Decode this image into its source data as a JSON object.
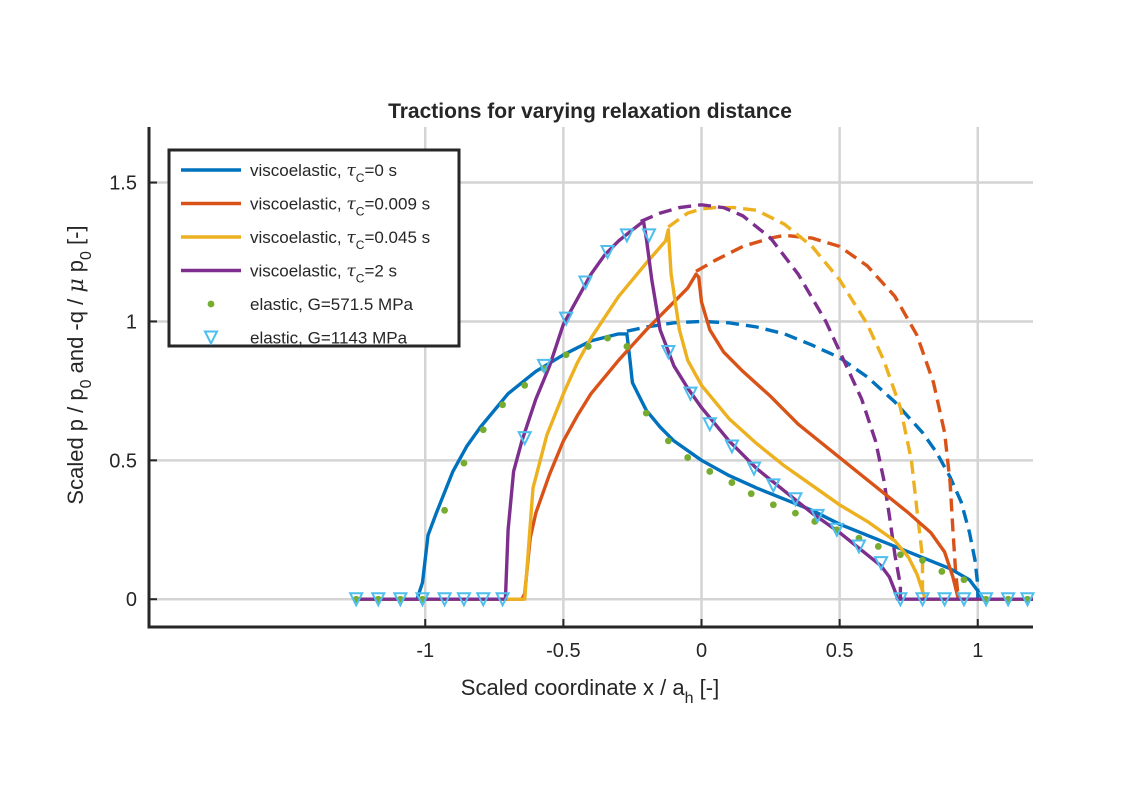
{
  "chart_data": {
    "type": "line",
    "title": "Tractions for varying relaxation distance",
    "xlabel": {
      "main": "Scaled coordinate x / a",
      "sub": "h",
      "tail": " [-]"
    },
    "ylabel": {
      "p1": "Scaled p / p",
      "s1": "0",
      "p2": " and -q / ",
      "mu": "μ",
      "p3": " p",
      "s2": "0",
      "p4": " [-]"
    },
    "xlim": [
      -2.0,
      1.2
    ],
    "ylim": [
      -0.1,
      1.7
    ],
    "xticks": [
      -1,
      -0.5,
      0,
      0.5,
      1
    ],
    "xtick_labels": [
      "-1",
      "-0.5",
      "0",
      "0.5",
      "1"
    ],
    "yticks": [
      0,
      0.5,
      1,
      1.5
    ],
    "ytick_labels": [
      "0",
      "0.5",
      "1",
      "1.5"
    ],
    "grid": true,
    "legend_placement": "top-left",
    "legend": [
      {
        "pre": "viscoelastic, ",
        "tau": "τ",
        "sub": "C",
        "post": "=0 s",
        "color": "#0072BD",
        "marker": "line"
      },
      {
        "pre": "viscoelastic, ",
        "tau": "τ",
        "sub": "C",
        "post": "=0.009 s",
        "color": "#D95319",
        "marker": "line"
      },
      {
        "pre": "viscoelastic, ",
        "tau": "τ",
        "sub": "C",
        "post": "=0.045 s",
        "color": "#EDB120",
        "marker": "line"
      },
      {
        "pre": "viscoelastic, ",
        "tau": "τ",
        "sub": "C",
        "post": "=2 s",
        "color": "#7E2F8E",
        "marker": "line"
      },
      {
        "pre": "elastic, G=571.5 MPa",
        "tau": "",
        "sub": "",
        "post": "",
        "color": "#77AC30",
        "marker": "dot"
      },
      {
        "pre": "elastic, G=1143 MPa",
        "tau": "",
        "sub": "",
        "post": "",
        "color": "#4DBEEE",
        "marker": "triangle"
      }
    ],
    "series": [
      {
        "name": "viscoelastic, τC=0 s",
        "color": "#0072BD",
        "solid": [
          [
            -1.25,
            0
          ],
          [
            -1.1,
            0
          ],
          [
            -1.03,
            0.0
          ],
          [
            -1.01,
            0.06
          ],
          [
            -0.99,
            0.23
          ],
          [
            -0.96,
            0.31
          ],
          [
            -0.9,
            0.46
          ],
          [
            -0.85,
            0.55
          ],
          [
            -0.8,
            0.62
          ],
          [
            -0.7,
            0.74
          ],
          [
            -0.6,
            0.82
          ],
          [
            -0.5,
            0.88
          ],
          [
            -0.4,
            0.93
          ],
          [
            -0.3,
            0.955
          ],
          [
            -0.27,
            0.955
          ],
          [
            -0.26,
            0.87
          ],
          [
            -0.25,
            0.78
          ],
          [
            -0.22,
            0.72
          ],
          [
            -0.2,
            0.68
          ],
          [
            -0.15,
            0.62
          ],
          [
            -0.1,
            0.57
          ],
          [
            0,
            0.5
          ],
          [
            0.1,
            0.445
          ],
          [
            0.2,
            0.4
          ],
          [
            0.3,
            0.36
          ],
          [
            0.4,
            0.32
          ],
          [
            0.5,
            0.27
          ],
          [
            0.6,
            0.23
          ],
          [
            0.7,
            0.19
          ],
          [
            0.8,
            0.15
          ],
          [
            0.9,
            0.11
          ],
          [
            0.97,
            0.07
          ],
          [
            1.0,
            0.03
          ],
          [
            1.02,
            0
          ],
          [
            1.2,
            0
          ]
        ],
        "dashed": [
          [
            -0.27,
            0.965
          ],
          [
            -0.2,
            0.98
          ],
          [
            -0.1,
            0.995
          ],
          [
            0,
            1.0
          ],
          [
            0.1,
            0.995
          ],
          [
            0.2,
            0.98
          ],
          [
            0.3,
            0.955
          ],
          [
            0.4,
            0.915
          ],
          [
            0.5,
            0.87
          ],
          [
            0.6,
            0.8
          ],
          [
            0.7,
            0.71
          ],
          [
            0.8,
            0.6
          ],
          [
            0.85,
            0.53
          ],
          [
            0.9,
            0.44
          ],
          [
            0.94,
            0.35
          ],
          [
            0.97,
            0.24
          ],
          [
            0.99,
            0.14
          ],
          [
            1.0,
            0.05
          ],
          [
            1.0,
            0
          ]
        ]
      },
      {
        "name": "viscoelastic, τC=0.009 s",
        "color": "#D95319",
        "solid": [
          [
            -1.25,
            0
          ],
          [
            -0.65,
            0
          ],
          [
            -0.64,
            0.02
          ],
          [
            -0.62,
            0.22
          ],
          [
            -0.6,
            0.31
          ],
          [
            -0.55,
            0.45
          ],
          [
            -0.5,
            0.57
          ],
          [
            -0.45,
            0.66
          ],
          [
            -0.4,
            0.74
          ],
          [
            -0.3,
            0.86
          ],
          [
            -0.2,
            0.97
          ],
          [
            -0.1,
            1.07
          ],
          [
            -0.05,
            1.12
          ],
          [
            -0.02,
            1.17
          ],
          [
            -0.01,
            1.16
          ],
          [
            0.0,
            1.07
          ],
          [
            0.03,
            0.97
          ],
          [
            0.08,
            0.89
          ],
          [
            0.15,
            0.82
          ],
          [
            0.25,
            0.73
          ],
          [
            0.35,
            0.63
          ],
          [
            0.45,
            0.55
          ],
          [
            0.55,
            0.47
          ],
          [
            0.65,
            0.39
          ],
          [
            0.75,
            0.31
          ],
          [
            0.83,
            0.24
          ],
          [
            0.88,
            0.17
          ],
          [
            0.91,
            0.08
          ],
          [
            0.93,
            0
          ],
          [
            1.2,
            0
          ]
        ],
        "dashed": [
          [
            -0.02,
            1.18
          ],
          [
            0.05,
            1.22
          ],
          [
            0.15,
            1.27
          ],
          [
            0.25,
            1.3
          ],
          [
            0.3,
            1.31
          ],
          [
            0.4,
            1.3
          ],
          [
            0.5,
            1.27
          ],
          [
            0.6,
            1.2
          ],
          [
            0.7,
            1.09
          ],
          [
            0.78,
            0.95
          ],
          [
            0.84,
            0.78
          ],
          [
            0.88,
            0.6
          ],
          [
            0.9,
            0.42
          ],
          [
            0.91,
            0.25
          ],
          [
            0.92,
            0.1
          ],
          [
            0.93,
            0
          ]
        ]
      },
      {
        "name": "viscoelastic, τC=0.045 s",
        "color": "#EDB120",
        "solid": [
          [
            -1.25,
            0
          ],
          [
            -0.64,
            0
          ],
          [
            -0.61,
            0.4
          ],
          [
            -0.56,
            0.59
          ],
          [
            -0.5,
            0.74
          ],
          [
            -0.45,
            0.85
          ],
          [
            -0.4,
            0.94
          ],
          [
            -0.3,
            1.09
          ],
          [
            -0.2,
            1.21
          ],
          [
            -0.13,
            1.29
          ],
          [
            -0.12,
            1.33
          ],
          [
            -0.11,
            1.17
          ],
          [
            -0.08,
            0.97
          ],
          [
            -0.05,
            0.86
          ],
          [
            0,
            0.77
          ],
          [
            0.1,
            0.65
          ],
          [
            0.2,
            0.56
          ],
          [
            0.3,
            0.48
          ],
          [
            0.4,
            0.41
          ],
          [
            0.5,
            0.34
          ],
          [
            0.6,
            0.28
          ],
          [
            0.7,
            0.21
          ],
          [
            0.75,
            0.15
          ],
          [
            0.78,
            0.09
          ],
          [
            0.8,
            0.03
          ],
          [
            0.81,
            0
          ],
          [
            1.2,
            0
          ]
        ],
        "dashed": [
          [
            -0.12,
            1.34
          ],
          [
            -0.05,
            1.39
          ],
          [
            0.0,
            1.405
          ],
          [
            0.05,
            1.41
          ],
          [
            0.12,
            1.41
          ],
          [
            0.2,
            1.4
          ],
          [
            0.3,
            1.35
          ],
          [
            0.4,
            1.27
          ],
          [
            0.5,
            1.15
          ],
          [
            0.6,
            0.99
          ],
          [
            0.66,
            0.86
          ],
          [
            0.72,
            0.69
          ],
          [
            0.76,
            0.5
          ],
          [
            0.78,
            0.32
          ],
          [
            0.8,
            0.15
          ],
          [
            0.8,
            0
          ]
        ]
      },
      {
        "name": "viscoelastic, τC=2 s",
        "color": "#7E2F8E",
        "solid": [
          [
            -1.25,
            0
          ],
          [
            -0.71,
            0
          ],
          [
            -0.7,
            0.25
          ],
          [
            -0.68,
            0.46
          ],
          [
            -0.65,
            0.57
          ],
          [
            -0.6,
            0.72
          ],
          [
            -0.55,
            0.84
          ],
          [
            -0.5,
            0.99
          ],
          [
            -0.45,
            1.08
          ],
          [
            -0.4,
            1.17
          ],
          [
            -0.35,
            1.24
          ],
          [
            -0.3,
            1.29
          ],
          [
            -0.25,
            1.33
          ],
          [
            -0.21,
            1.36
          ],
          [
            -0.2,
            1.3
          ],
          [
            -0.18,
            1.15
          ],
          [
            -0.15,
            0.97
          ],
          [
            -0.1,
            0.84
          ],
          [
            -0.05,
            0.76
          ],
          [
            0,
            0.69
          ],
          [
            0.1,
            0.57
          ],
          [
            0.2,
            0.47
          ],
          [
            0.3,
            0.39
          ],
          [
            0.4,
            0.31
          ],
          [
            0.5,
            0.24
          ],
          [
            0.55,
            0.2
          ],
          [
            0.6,
            0.16
          ],
          [
            0.65,
            0.12
          ],
          [
            0.68,
            0.08
          ],
          [
            0.7,
            0.03
          ],
          [
            0.71,
            0
          ],
          [
            1.2,
            0
          ]
        ],
        "dashed": [
          [
            -0.22,
            1.36
          ],
          [
            -0.15,
            1.39
          ],
          [
            -0.08,
            1.41
          ],
          [
            0,
            1.42
          ],
          [
            0.08,
            1.41
          ],
          [
            0.15,
            1.38
          ],
          [
            0.25,
            1.3
          ],
          [
            0.35,
            1.17
          ],
          [
            0.45,
            1.0
          ],
          [
            0.52,
            0.85
          ],
          [
            0.58,
            0.72
          ],
          [
            0.63,
            0.57
          ],
          [
            0.66,
            0.43
          ],
          [
            0.68,
            0.3
          ],
          [
            0.7,
            0.16
          ],
          [
            0.72,
            0.05
          ],
          [
            0.72,
            0
          ]
        ]
      },
      {
        "name": "elastic, G=571.5 MPa",
        "color": "#77AC30",
        "marker": "dot",
        "points": [
          [
            -1.25,
            0
          ],
          [
            -1.17,
            0
          ],
          [
            -1.09,
            0
          ],
          [
            -1.01,
            0
          ],
          [
            -0.93,
            0.32
          ],
          [
            -0.86,
            0.49
          ],
          [
            -0.79,
            0.61
          ],
          [
            -0.72,
            0.7
          ],
          [
            -0.64,
            0.77
          ],
          [
            -0.57,
            0.83
          ],
          [
            -0.49,
            0.88
          ],
          [
            -0.41,
            0.91
          ],
          [
            -0.34,
            0.94
          ],
          [
            -0.27,
            0.91
          ],
          [
            -0.2,
            0.67
          ],
          [
            -0.12,
            0.57
          ],
          [
            -0.05,
            0.51
          ],
          [
            0.03,
            0.46
          ],
          [
            0.11,
            0.42
          ],
          [
            0.18,
            0.38
          ],
          [
            0.26,
            0.34
          ],
          [
            0.34,
            0.31
          ],
          [
            0.41,
            0.28
          ],
          [
            0.49,
            0.25
          ],
          [
            0.57,
            0.22
          ],
          [
            0.64,
            0.19
          ],
          [
            0.72,
            0.16
          ],
          [
            0.8,
            0.14
          ],
          [
            0.87,
            0.1
          ],
          [
            0.95,
            0.07
          ],
          [
            1.03,
            0
          ],
          [
            1.11,
            0
          ],
          [
            1.18,
            0
          ]
        ]
      },
      {
        "name": "elastic, G=1143 MPa",
        "color": "#4DBEEE",
        "marker": "triangle",
        "points": [
          [
            -1.25,
            0
          ],
          [
            -1.17,
            0
          ],
          [
            -1.09,
            0
          ],
          [
            -1.01,
            0
          ],
          [
            -0.93,
            0
          ],
          [
            -0.86,
            0
          ],
          [
            -0.79,
            0
          ],
          [
            -0.72,
            0
          ],
          [
            -0.64,
            0.58
          ],
          [
            -0.57,
            0.84
          ],
          [
            -0.49,
            1.01
          ],
          [
            -0.42,
            1.14
          ],
          [
            -0.34,
            1.25
          ],
          [
            -0.27,
            1.31
          ],
          [
            -0.19,
            1.31
          ],
          [
            -0.12,
            0.89
          ],
          [
            -0.04,
            0.74
          ],
          [
            0.03,
            0.63
          ],
          [
            0.11,
            0.55
          ],
          [
            0.19,
            0.47
          ],
          [
            0.26,
            0.41
          ],
          [
            0.34,
            0.36
          ],
          [
            0.42,
            0.3
          ],
          [
            0.49,
            0.25
          ],
          [
            0.57,
            0.19
          ],
          [
            0.65,
            0.13
          ],
          [
            0.72,
            0
          ],
          [
            0.8,
            0
          ],
          [
            0.88,
            0
          ],
          [
            0.95,
            0
          ],
          [
            1.03,
            0
          ],
          [
            1.11,
            0
          ],
          [
            1.18,
            0
          ]
        ]
      }
    ]
  }
}
